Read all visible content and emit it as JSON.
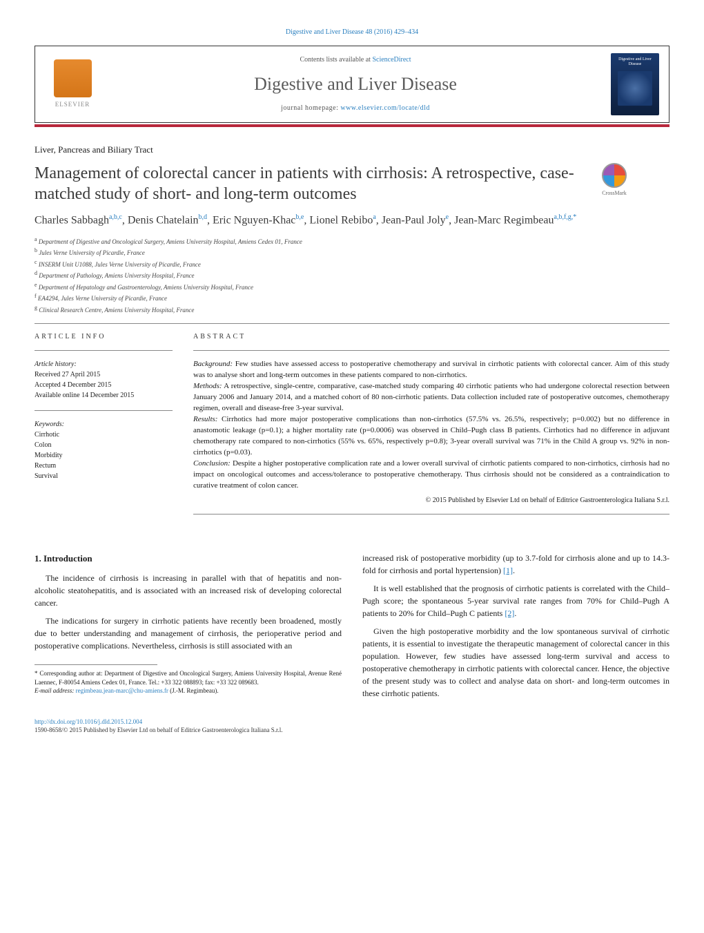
{
  "journal_ref": "Digestive and Liver Disease 48 (2016) 429–434",
  "header": {
    "contents_prefix": "Contents lists available at ",
    "contents_link": "ScienceDirect",
    "journal_name": "Digestive and Liver Disease",
    "homepage_prefix": "journal homepage: ",
    "homepage_url": "www.elsevier.com/locate/dld",
    "publisher": "ELSEVIER",
    "cover_title": "Digestive and Liver Disease"
  },
  "section_label": "Liver, Pancreas and Biliary Tract",
  "title": "Management of colorectal cancer in patients with cirrhosis: A retrospective, case-matched study of short- and long-term outcomes",
  "crossmark": "CrossMark",
  "authors_html": "Charles Sabbagh<sup>a,b,c</sup>, Denis Chatelain<sup>b,d</sup>, Eric Nguyen-Khac<sup>b,e</sup>, Lionel Rebibo<sup>a</sup>, Jean-Paul Joly<sup>e</sup>, Jean-Marc Regimbeau<sup>a,b,f,g,*</sup>",
  "affiliations": [
    "a Department of Digestive and Oncological Surgery, Amiens University Hospital, Amiens Cedex 01, France",
    "b Jules Verne University of Picardie, France",
    "c INSERM Unit U1088, Jules Verne University of Picardie, France",
    "d Department of Pathology, Amiens University Hospital, France",
    "e Department of Hepatology and Gastroenterology, Amiens University Hospital, France",
    "f EA4294, Jules Verne University of Picardie, France",
    "g Clinical Research Centre, Amiens University Hospital, France"
  ],
  "article_info": {
    "heading": "ARTICLE INFO",
    "history_label": "Article history:",
    "received": "Received 27 April 2015",
    "accepted": "Accepted 4 December 2015",
    "online": "Available online 14 December 2015",
    "keywords_label": "Keywords:",
    "keywords": [
      "Cirrhotic",
      "Colon",
      "Morbidity",
      "Rectum",
      "Survival"
    ]
  },
  "abstract": {
    "heading": "ABSTRACT",
    "background_label": "Background:",
    "background": "Few studies have assessed access to postoperative chemotherapy and survival in cirrhotic patients with colorectal cancer. Aim of this study was to analyse short and long-term outcomes in these patients compared to non-cirrhotics.",
    "methods_label": "Methods:",
    "methods": "A retrospective, single-centre, comparative, case-matched study comparing 40 cirrhotic patients who had undergone colorectal resection between January 2006 and January 2014, and a matched cohort of 80 non-cirrhotic patients. Data collection included rate of postoperative outcomes, chemotherapy regimen, overall and disease-free 3-year survival.",
    "results_label": "Results:",
    "results": "Cirrhotics had more major postoperative complications than non-cirrhotics (57.5% vs. 26.5%, respectively; p=0.002) but no difference in anastomotic leakage (p=0.1); a higher mortality rate (p=0.0006) was observed in Child–Pugh class B patients. Cirrhotics had no difference in adjuvant chemotherapy rate compared to non-cirrhotics (55% vs. 65%, respectively p=0.8); 3-year overall survival was 71% in the Child A group vs. 92% in non-cirrhotics (p=0.03).",
    "conclusion_label": "Conclusion:",
    "conclusion": "Despite a higher postoperative complication rate and a lower overall survival of cirrhotic patients compared to non-cirrhotics, cirrhosis had no impact on oncological outcomes and access/tolerance to postoperative chemotherapy. Thus cirrhosis should not be considered as a contraindication to curative treatment of colon cancer.",
    "copyright": "© 2015 Published by Elsevier Ltd on behalf of Editrice Gastroenterologica Italiana S.r.l."
  },
  "body": {
    "intro_heading": "1. Introduction",
    "p1": "The incidence of cirrhosis is increasing in parallel with that of hepatitis and non-alcoholic steatohepatitis, and is associated with an increased risk of developing colorectal cancer.",
    "p2": "The indications for surgery in cirrhotic patients have recently been broadened, mostly due to better understanding and management of cirrhosis, the perioperative period and postoperative complications. Nevertheless, cirrhosis is still associated with an",
    "p3_pre": "increased risk of postoperative morbidity (up to 3.7-fold for cirrhosis alone and up to 14.3-fold for cirrhosis and portal hypertension) ",
    "p3_ref": "[1]",
    "p3_post": ".",
    "p4_pre": "It is well established that the prognosis of cirrhotic patients is correlated with the Child–Pugh score; the spontaneous 5-year survival rate ranges from 70% for Child–Pugh A patients to 20% for Child–Pugh C patients ",
    "p4_ref": "[2]",
    "p4_post": ".",
    "p5": "Given the high postoperative morbidity and the low spontaneous survival of cirrhotic patients, it is essential to investigate the therapeutic management of colorectal cancer in this population. However, few studies have assessed long-term survival and access to postoperative chemotherapy in cirrhotic patients with colorectal cancer. Hence, the objective of the present study was to collect and analyse data on short- and long-term outcomes in these cirrhotic patients."
  },
  "footnote": {
    "corr": "* Corresponding author at: Department of Digestive and Oncological Surgery, Amiens University Hospital, Avenue René Laennec, F-80054 Amiens Cedex 01, France. Tel.: +33 322 088893; fax: +33 322 089683.",
    "email_label": "E-mail address: ",
    "email": "regimbeau.jean-marc@chu-amiens.fr",
    "email_person": " (J.-M. Regimbeau)."
  },
  "doi": {
    "url": "http://dx.doi.org/10.1016/j.dld.2015.12.004",
    "issn": "1590-8658/© 2015 Published by Elsevier Ltd on behalf of Editrice Gastroenterologica Italiana S.r.l."
  },
  "colors": {
    "link": "#2a7fbf",
    "accent_bar": "#b8283c",
    "elsevier_orange": "#e68a2e",
    "cover_blue": "#1a3a6e"
  }
}
